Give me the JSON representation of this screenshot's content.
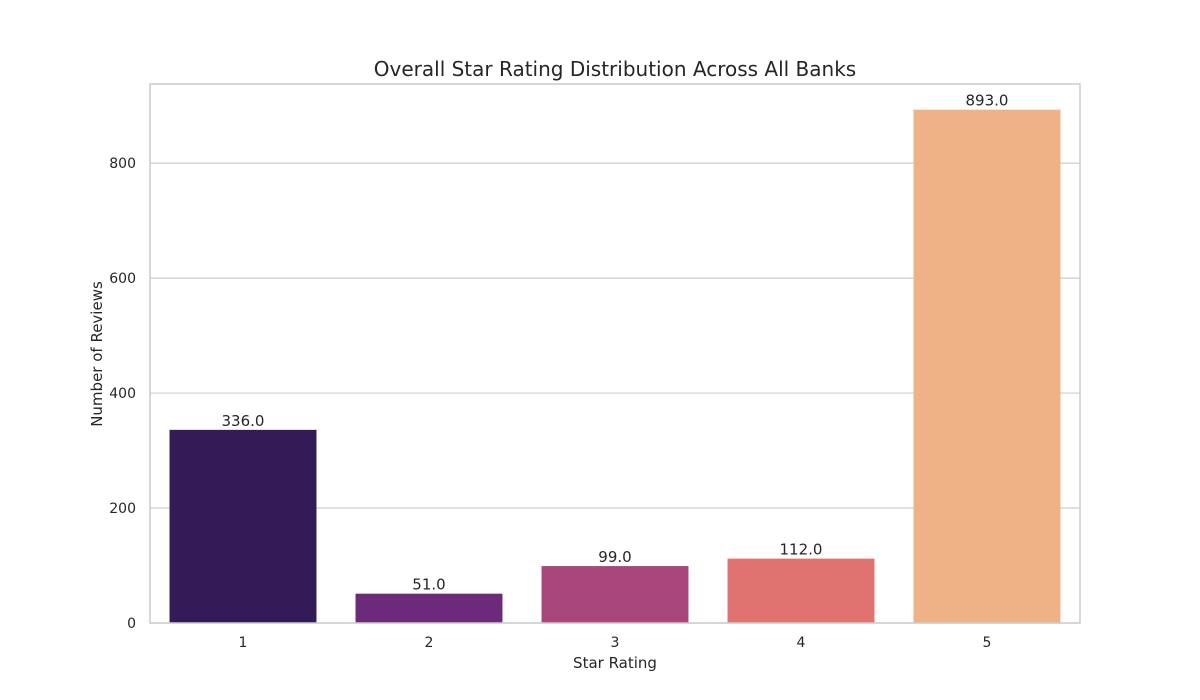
{
  "chart_data": {
    "type": "bar",
    "title": "Overall Star Rating Distribution Across All Banks",
    "xlabel": "Star Rating",
    "ylabel": "Number of Reviews",
    "categories": [
      "1",
      "2",
      "3",
      "4",
      "5"
    ],
    "values": [
      336,
      51,
      99,
      112,
      893
    ],
    "value_labels": [
      "336.0",
      "51.0",
      "99.0",
      "112.0",
      "893.0"
    ],
    "colors": [
      "#321b56",
      "#6b2a7a",
      "#a8467b",
      "#e07370",
      "#efb287"
    ],
    "yticks": [
      0,
      200,
      400,
      600,
      800
    ],
    "ytick_labels": [
      "0",
      "200",
      "400",
      "600",
      "800"
    ],
    "ylim": [
      0,
      937.65
    ],
    "grid": true,
    "legend": "none"
  }
}
